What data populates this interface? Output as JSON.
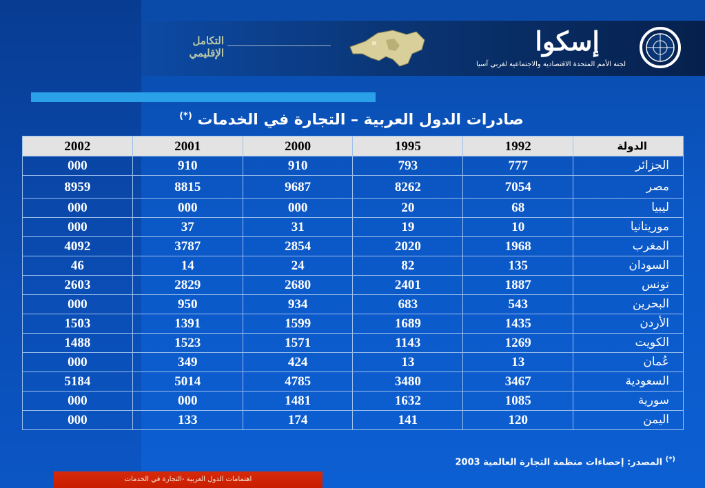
{
  "header": {
    "logo_text_line1": "التكامل",
    "logo_text_line2": "الإقليمي",
    "org_name": "إسكوا",
    "org_subtitle": "لجنة الأمم المتحدة الاقتصادية والاجتماعية لغربي آسيا"
  },
  "title": {
    "text": "صادرات الدول العربية – التجارة في الخدمات",
    "footnote_mark": "(*)"
  },
  "table": {
    "headers": [
      "الدولة",
      "1992",
      "1995",
      "2000",
      "2001",
      "2002"
    ],
    "rows": [
      [
        "الجزائر",
        "777",
        "793",
        "910",
        "910",
        "000"
      ],
      [
        "مصر",
        "7054",
        "8262",
        "9687",
        "8815",
        "8959"
      ],
      [
        "ليبيا",
        "68",
        "20",
        "000",
        "000",
        "000"
      ],
      [
        "موريتانيا",
        "10",
        "19",
        "31",
        "37",
        "000"
      ],
      [
        "المغرب",
        "1968",
        "2020",
        "2854",
        "3787",
        "4092"
      ],
      [
        "السودان",
        "135",
        "82",
        "24",
        "14",
        "46"
      ],
      [
        "تونس",
        "1887",
        "2401",
        "2680",
        "2829",
        "2603"
      ],
      [
        "البحرين",
        "543",
        "683",
        "934",
        "950",
        "000"
      ],
      [
        "الأردن",
        "1435",
        "1689",
        "1599",
        "1391",
        "1503"
      ],
      [
        "الكويت",
        "1269",
        "1143",
        "1571",
        "1523",
        "1488"
      ],
      [
        "عُمان",
        "13",
        "13",
        "424",
        "349",
        "000"
      ],
      [
        "السعودية",
        "3467",
        "3480",
        "4785",
        "5014",
        "5184"
      ],
      [
        "سورية",
        "1085",
        "1632",
        "1481",
        "000",
        "000"
      ],
      [
        "اليمن",
        "120",
        "141",
        "174",
        "133",
        "000"
      ]
    ]
  },
  "source": {
    "mark": "(*)",
    "text": "المصدر: إحصاءات منظمة التجارة العالمية 2003"
  },
  "footer": {
    "text": "اهتمامات الدول العربية -التجارة في الخدمات"
  },
  "colors": {
    "background": "#0b58c7",
    "header_row": "#e3e3e3",
    "accent_bar": "#2aa0e8",
    "footer_bar": "#c81e00"
  }
}
